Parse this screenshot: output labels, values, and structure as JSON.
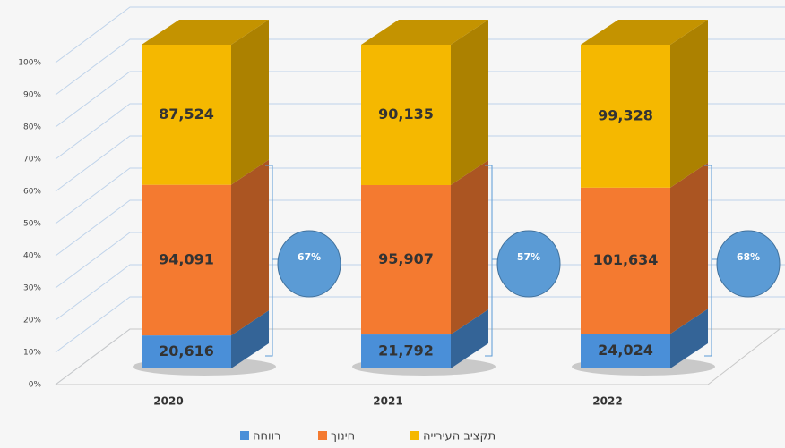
{
  "chart_data": {
    "type": "bar",
    "stack": "percent",
    "categories": [
      "2020",
      "2021",
      "2022"
    ],
    "series": [
      {
        "name": "רווחה",
        "color": "#4a8fd8",
        "values": [
          20616,
          21792,
          24024
        ],
        "value_labels": [
          "20,616",
          "21,792",
          "24,024"
        ]
      },
      {
        "name": "חינוך",
        "color": "#f47a30",
        "values": [
          94091,
          95907,
          101634
        ],
        "value_labels": [
          "94,091",
          "95,907",
          "101,634"
        ]
      },
      {
        "name": "תקציב העירייה",
        "color": "#f5b800",
        "values": [
          87524,
          90135,
          99328
        ],
        "value_labels": [
          "87,524",
          "90,135",
          "99,328"
        ]
      }
    ],
    "annotations": [
      "67%",
      "57%",
      "68%"
    ],
    "ylim": [
      0,
      100
    ],
    "yticks": [
      {
        "value": 0,
        "label": "0%"
      },
      {
        "value": 10,
        "label": "10%"
      },
      {
        "value": 20,
        "label": "20%"
      },
      {
        "value": 30,
        "label": "30%"
      },
      {
        "value": 40,
        "label": "40%"
      },
      {
        "value": 50,
        "label": "50%"
      },
      {
        "value": 60,
        "label": "60%"
      },
      {
        "value": 70,
        "label": "70%"
      },
      {
        "value": 80,
        "label": "80%"
      },
      {
        "value": 90,
        "label": "90%"
      },
      {
        "value": 100,
        "label": "100%"
      }
    ],
    "grid": true,
    "legend": "bottom"
  }
}
